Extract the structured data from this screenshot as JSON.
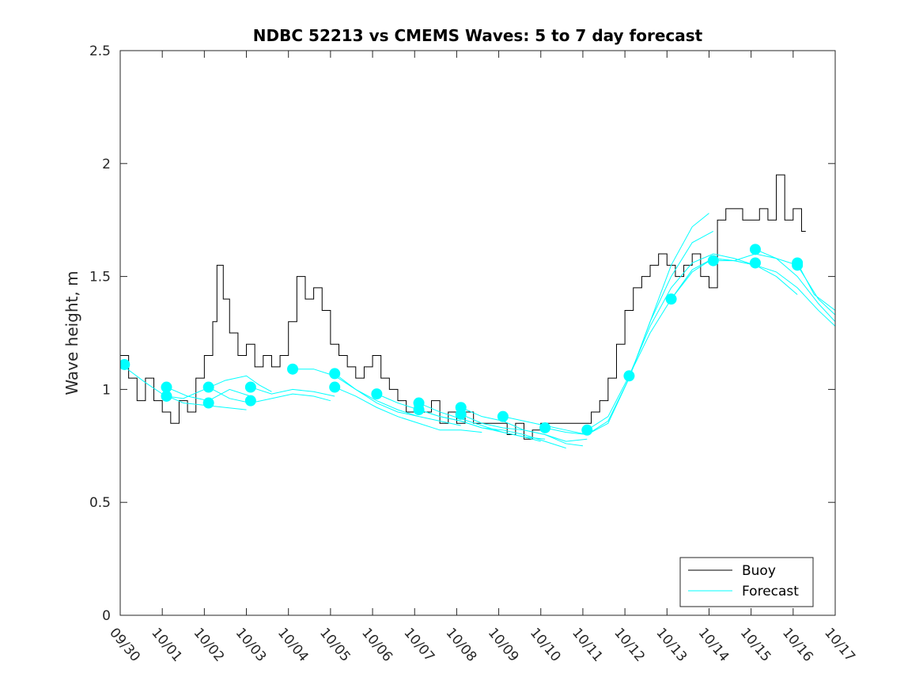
{
  "chart_data": {
    "type": "line",
    "title": "NDBC 52213 vs CMEMS Waves: 5 to 7 day forecast",
    "xlabel": "",
    "ylabel": "Wave height, m",
    "xlim": [
      0,
      17
    ],
    "ylim": [
      0,
      2.5
    ],
    "yticks": [
      0,
      0.5,
      1,
      1.5,
      2,
      2.5
    ],
    "ytick_labels": [
      "0",
      "0.5",
      "1",
      "1.5",
      "2",
      "2.5"
    ],
    "xticks": [
      0,
      1,
      2,
      3,
      4,
      5,
      6,
      7,
      8,
      9,
      10,
      11,
      12,
      13,
      14,
      15,
      16,
      17
    ],
    "xtick_labels": [
      "09/30",
      "10/01",
      "10/02",
      "10/03",
      "10/04",
      "10/05",
      "10/06",
      "10/07",
      "10/08",
      "10/09",
      "10/10",
      "10/11",
      "10/12",
      "10/13",
      "10/14",
      "10/15",
      "10/16",
      "10/17"
    ],
    "legend": {
      "position": "bottom-right",
      "entries": [
        "Buoy",
        "Forecast"
      ]
    },
    "colors": {
      "buoy": "#000000",
      "forecast": "#00ffff",
      "markers": "#00ffff",
      "axes": "#262626"
    },
    "series": [
      {
        "name": "Buoy",
        "x": [
          0,
          0.2,
          0.4,
          0.6,
          0.8,
          1.0,
          1.2,
          1.4,
          1.6,
          1.8,
          2.0,
          2.2,
          2.3,
          2.45,
          2.6,
          2.8,
          3.0,
          3.2,
          3.4,
          3.6,
          3.8,
          4.0,
          4.2,
          4.4,
          4.6,
          4.8,
          5.0,
          5.2,
          5.4,
          5.6,
          5.8,
          6.0,
          6.2,
          6.4,
          6.6,
          6.8,
          7.0,
          7.2,
          7.4,
          7.6,
          7.8,
          8.0,
          8.2,
          8.4,
          8.6,
          8.8,
          9.0,
          9.2,
          9.4,
          9.6,
          9.8,
          10.0,
          10.2,
          10.4,
          10.6,
          10.8,
          11.0,
          11.2,
          11.4,
          11.6,
          11.8,
          12.0,
          12.2,
          12.4,
          12.6,
          12.8,
          13.0,
          13.2,
          13.4,
          13.6,
          13.8,
          14.0,
          14.2,
          14.4,
          14.6,
          14.8,
          15.0,
          15.2,
          15.4,
          15.6,
          15.8,
          16.0,
          16.2,
          16.3
        ],
        "values": [
          1.15,
          1.05,
          0.95,
          1.05,
          0.95,
          0.9,
          0.85,
          0.95,
          0.9,
          1.05,
          1.15,
          1.3,
          1.55,
          1.4,
          1.25,
          1.15,
          1.2,
          1.1,
          1.15,
          1.1,
          1.15,
          1.3,
          1.5,
          1.4,
          1.45,
          1.35,
          1.2,
          1.15,
          1.1,
          1.05,
          1.1,
          1.15,
          1.05,
          1.0,
          0.95,
          0.9,
          0.95,
          0.9,
          0.95,
          0.85,
          0.9,
          0.85,
          0.9,
          0.85,
          0.85,
          0.85,
          0.85,
          0.8,
          0.85,
          0.78,
          0.82,
          0.85,
          0.85,
          0.85,
          0.85,
          0.85,
          0.85,
          0.9,
          0.95,
          1.05,
          1.2,
          1.35,
          1.45,
          1.5,
          1.55,
          1.6,
          1.55,
          1.5,
          1.55,
          1.6,
          1.5,
          1.45,
          1.75,
          1.8,
          1.8,
          1.75,
          1.75,
          1.8,
          1.75,
          1.95,
          1.75,
          1.8,
          1.7,
          1.7
        ]
      },
      {
        "name": "Forecast",
        "lines": [
          {
            "x": [
              0.1,
              0.6,
              1.0,
              1.5,
              2.0,
              2.5,
              3.0
            ],
            "values": [
              1.1,
              1.03,
              0.98,
              0.94,
              0.93,
              0.92,
              0.91
            ]
          },
          {
            "x": [
              1.1,
              1.6,
              2.1,
              2.6,
              3.1
            ],
            "values": [
              1.01,
              0.97,
              0.95,
              1.0,
              0.97
            ]
          },
          {
            "x": [
              1.1,
              1.5,
              2.0,
              2.5,
              3.0,
              3.3,
              3.6
            ],
            "values": [
              0.97,
              0.96,
              1.0,
              1.04,
              1.06,
              1.02,
              0.99
            ]
          },
          {
            "x": [
              2.1,
              2.6,
              3.1,
              3.6,
              4.1,
              4.6,
              5.0
            ],
            "values": [
              1.01,
              0.96,
              0.94,
              0.96,
              0.98,
              0.97,
              0.95
            ]
          },
          {
            "x": [
              3.1,
              3.6,
              4.1,
              4.6,
              5.1
            ],
            "values": [
              1.01,
              0.98,
              1.0,
              0.99,
              0.97
            ]
          },
          {
            "x": [
              4.1,
              4.6,
              5.1,
              5.6,
              6.1,
              6.6,
              7.1
            ],
            "values": [
              1.09,
              1.09,
              1.06,
              1.0,
              0.94,
              0.9,
              0.88
            ]
          },
          {
            "x": [
              5.1,
              5.6,
              6.1,
              6.6,
              7.1,
              7.6,
              8.1
            ],
            "values": [
              1.07,
              1.0,
              0.95,
              0.91,
              0.88,
              0.86,
              0.84
            ]
          },
          {
            "x": [
              5.1,
              5.6,
              6.1,
              6.6,
              7.1,
              7.6,
              8.1,
              8.6
            ],
            "values": [
              1.01,
              0.97,
              0.92,
              0.88,
              0.85,
              0.82,
              0.82,
              0.81
            ]
          },
          {
            "x": [
              6.1,
              6.6,
              7.1,
              7.6,
              8.1,
              8.6,
              9.1,
              9.6,
              10.0
            ],
            "values": [
              0.98,
              0.94,
              0.91,
              0.88,
              0.86,
              0.83,
              0.81,
              0.79,
              0.77
            ]
          },
          {
            "x": [
              7.1,
              7.6,
              8.1,
              8.6,
              9.1,
              9.6,
              10.1
            ],
            "values": [
              0.94,
              0.9,
              0.87,
              0.84,
              0.81,
              0.79,
              0.78
            ]
          },
          {
            "x": [
              7.1,
              7.6,
              8.1,
              8.6,
              9.1,
              9.6,
              10.1,
              10.6
            ],
            "values": [
              0.91,
              0.88,
              0.86,
              0.83,
              0.82,
              0.8,
              0.77,
              0.74
            ]
          },
          {
            "x": [
              8.1,
              8.6,
              9.1,
              9.6,
              10.1,
              10.6,
              11.0
            ],
            "values": [
              0.92,
              0.88,
              0.86,
              0.82,
              0.8,
              0.76,
              0.75
            ]
          },
          {
            "x": [
              8.1,
              8.6,
              9.1,
              9.6,
              10.1,
              10.6,
              11.1
            ],
            "values": [
              0.89,
              0.85,
              0.83,
              0.82,
              0.8,
              0.77,
              0.78
            ]
          },
          {
            "x": [
              9.1,
              9.6,
              10.1,
              10.6,
              11.1,
              11.6,
              12.1,
              12.6,
              13.1,
              13.6,
              14.0
            ],
            "values": [
              0.88,
              0.86,
              0.84,
              0.82,
              0.8,
              0.85,
              1.05,
              1.3,
              1.55,
              1.72,
              1.78
            ]
          },
          {
            "x": [
              10.1,
              10.6,
              11.1,
              11.6,
              12.1,
              12.6,
              13.1,
              13.6,
              14.1
            ],
            "values": [
              0.83,
              0.81,
              0.8,
              0.86,
              1.05,
              1.3,
              1.5,
              1.65,
              1.7
            ]
          },
          {
            "x": [
              11.1,
              11.6,
              12.1,
              12.6,
              13.1,
              13.6,
              14.1,
              14.6,
              15.1
            ],
            "values": [
              0.82,
              0.88,
              1.06,
              1.28,
              1.45,
              1.56,
              1.6,
              1.58,
              1.55
            ]
          },
          {
            "x": [
              12.1,
              12.6,
              13.1,
              13.6,
              14.1,
              14.6,
              15.1,
              15.6,
              16.1
            ],
            "values": [
              1.06,
              1.25,
              1.4,
              1.53,
              1.58,
              1.57,
              1.55,
              1.5,
              1.42
            ]
          },
          {
            "x": [
              13.1,
              13.6,
              14.1,
              14.6,
              15.1,
              15.6,
              16.1,
              16.6,
              17.0
            ],
            "values": [
              1.4,
              1.52,
              1.58,
              1.57,
              1.55,
              1.52,
              1.45,
              1.35,
              1.28
            ]
          },
          {
            "x": [
              14.1,
              14.6,
              15.1,
              15.6,
              16.1,
              16.6,
              17.0
            ],
            "values": [
              1.57,
              1.57,
              1.6,
              1.58,
              1.5,
              1.38,
              1.3
            ]
          },
          {
            "x": [
              15.1,
              15.6,
              16.1,
              16.6,
              17.0
            ],
            "values": [
              1.62,
              1.58,
              1.55,
              1.4,
              1.33
            ]
          },
          {
            "x": [
              16.1,
              16.5,
              17.0
            ],
            "values": [
              1.56,
              1.42,
              1.35
            ]
          }
        ],
        "markers": {
          "x": [
            0.1,
            1.1,
            1.1,
            2.1,
            2.1,
            3.1,
            3.1,
            4.1,
            5.1,
            5.1,
            6.1,
            7.1,
            7.1,
            8.1,
            8.1,
            9.1,
            10.1,
            11.1,
            12.1,
            13.1,
            14.1,
            15.1,
            15.1,
            16.1,
            16.1
          ],
          "values": [
            1.11,
            1.01,
            0.97,
            1.01,
            0.94,
            1.01,
            0.95,
            1.09,
            1.07,
            1.01,
            0.98,
            0.94,
            0.91,
            0.92,
            0.89,
            0.88,
            0.83,
            0.82,
            1.06,
            1.4,
            1.57,
            1.62,
            1.56,
            1.56,
            1.55
          ]
        }
      }
    ]
  }
}
